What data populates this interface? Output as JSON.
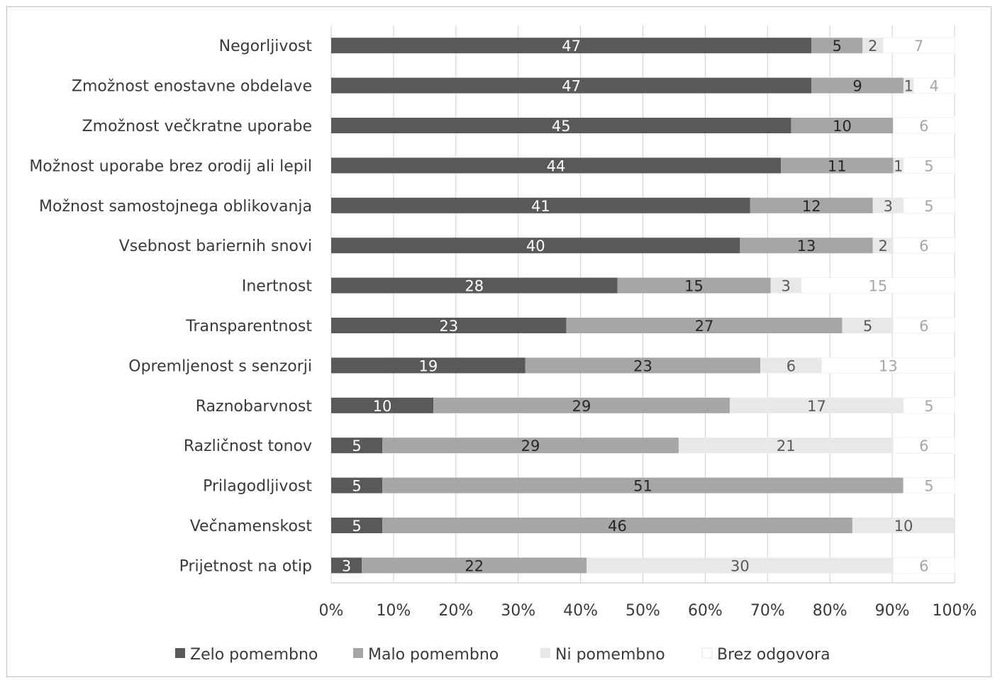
{
  "chart_data": {
    "type": "bar",
    "orientation": "horizontal",
    "stacked": "percent",
    "categories": [
      "Negorljivost",
      "Zmožnost enostavne obdelave",
      "Zmožnost večkratne uporabe",
      "Možnost uporabe brez orodij ali lepil",
      "Možnost samostojnega oblikovanja",
      "Vsebnost bariernih snovi",
      "Inertnost",
      "Transparentnost",
      "Opremljenost s senzorji",
      "Raznobarvnost",
      "Različnost tonov",
      "Prilagodljivost",
      "Večnamenskost",
      "Prijetnost na otip"
    ],
    "series": [
      {
        "name": "Zelo pomembno",
        "color": "#595959",
        "label_color": "#ffffff",
        "values": [
          47,
          47,
          45,
          44,
          41,
          40,
          28,
          23,
          19,
          10,
          5,
          5,
          5,
          3
        ]
      },
      {
        "name": "Malo pomembno",
        "color": "#a6a6a6",
        "label_color": "#262626",
        "values": [
          5,
          9,
          10,
          11,
          12,
          13,
          15,
          27,
          23,
          29,
          29,
          51,
          46,
          22
        ]
      },
      {
        "name": "Ni pomembno",
        "color": "#e8e8e8",
        "label_color": "#595959",
        "values": [
          2,
          1,
          0,
          1,
          3,
          2,
          3,
          5,
          6,
          17,
          21,
          0,
          10,
          30
        ]
      },
      {
        "name": "Brez odgovora",
        "color": "#ffffff",
        "label_color": "#a6a6a6",
        "values": [
          7,
          4,
          6,
          5,
          5,
          6,
          15,
          6,
          13,
          5,
          6,
          5,
          0,
          6
        ]
      }
    ],
    "x_ticks": [
      "0%",
      "10%",
      "20%",
      "30%",
      "40%",
      "50%",
      "60%",
      "70%",
      "80%",
      "90%",
      "100%"
    ],
    "xlim": [
      0,
      100
    ],
    "grid": "vertical",
    "legend_position": "bottom"
  }
}
